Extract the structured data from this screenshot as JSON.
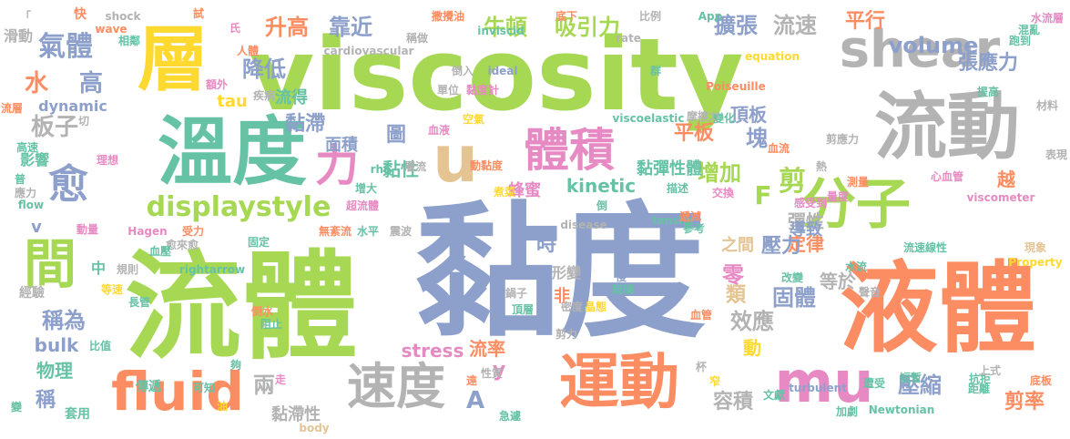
{
  "colors": {
    "blue": "#8DA0CB",
    "green": "#A6D854",
    "orange": "#FC8D62",
    "gray": "#B3B3B3",
    "pink": "#E78AC3",
    "yellow": "#FFD92F",
    "teal": "#66C2A5",
    "tan": "#E5C494"
  },
  "words": [
    {
      "text": "黏度",
      "color": "blue"
    },
    {
      "text": "流體",
      "color": "green"
    },
    {
      "text": "viscosity",
      "color": "green"
    },
    {
      "text": "液體",
      "color": "orange"
    },
    {
      "text": "溫度",
      "color": "teal"
    },
    {
      "text": "流動",
      "color": "gray"
    },
    {
      "text": "層",
      "color": "yellow"
    },
    {
      "text": "運動",
      "color": "orange"
    },
    {
      "text": "mu",
      "color": "pink"
    },
    {
      "text": "fluid",
      "color": "orange"
    },
    {
      "text": "shear",
      "color": "gray"
    },
    {
      "text": "分子",
      "color": "green"
    },
    {
      "text": "速度",
      "color": "gray"
    },
    {
      "text": "體積",
      "color": "pink"
    },
    {
      "text": "間",
      "color": "green"
    },
    {
      "text": "u",
      "color": "tan"
    },
    {
      "text": "力",
      "color": "pink"
    },
    {
      "text": "displaystyle",
      "color": "green"
    },
    {
      "text": "愈",
      "color": "blue"
    },
    {
      "text": "氣體",
      "color": "blue"
    },
    {
      "text": "升高",
      "color": "orange"
    },
    {
      "text": "靠近",
      "color": "blue"
    },
    {
      "text": "牛頓",
      "color": "green"
    },
    {
      "text": "吸引力",
      "color": "green"
    },
    {
      "text": "擴張",
      "color": "blue"
    },
    {
      "text": "流速",
      "color": "gray"
    },
    {
      "text": "平行",
      "color": "orange"
    },
    {
      "text": "volume",
      "color": "blue"
    },
    {
      "text": "張應力",
      "color": "blue"
    },
    {
      "text": "降低",
      "color": "blue"
    },
    {
      "text": "板子",
      "color": "gray"
    },
    {
      "text": "水",
      "color": "orange"
    },
    {
      "text": "高",
      "color": "blue"
    },
    {
      "text": "dynamic",
      "color": "blue"
    },
    {
      "text": "tau",
      "color": "yellow"
    },
    {
      "text": "流得",
      "color": "teal"
    },
    {
      "text": "黏滯",
      "color": "blue"
    },
    {
      "text": "面積",
      "color": "blue"
    },
    {
      "text": "圖",
      "color": "blue"
    },
    {
      "text": "頂板",
      "color": "blue"
    },
    {
      "text": "平板",
      "color": "orange"
    },
    {
      "text": "塊",
      "color": "blue"
    },
    {
      "text": "黏性",
      "color": "teal"
    },
    {
      "text": "kinetic",
      "color": "teal"
    },
    {
      "text": "增加",
      "color": "green"
    },
    {
      "text": "剪",
      "color": "green"
    },
    {
      "text": "F",
      "color": "green"
    },
    {
      "text": "彈性",
      "color": "gray"
    },
    {
      "text": "定律",
      "color": "orange"
    },
    {
      "text": "黏彈性體",
      "color": "teal"
    },
    {
      "text": "蜂蜜",
      "color": "pink"
    },
    {
      "text": "時",
      "color": "blue"
    },
    {
      "text": "之間",
      "color": "tan"
    },
    {
      "text": "導致",
      "color": "blue"
    },
    {
      "text": "壓力",
      "color": "blue"
    },
    {
      "text": "零",
      "color": "pink"
    },
    {
      "text": "類",
      "color": "tan"
    },
    {
      "text": "固體",
      "color": "blue"
    },
    {
      "text": "等於",
      "color": "gray"
    },
    {
      "text": "效應",
      "color": "gray"
    },
    {
      "text": "動",
      "color": "yellow"
    },
    {
      "text": "稱為",
      "color": "blue"
    },
    {
      "text": "bulk",
      "color": "blue"
    },
    {
      "text": "物理",
      "color": "teal"
    },
    {
      "text": "stress",
      "color": "pink"
    },
    {
      "text": "流率",
      "color": "orange"
    },
    {
      "text": "y",
      "color": "pink"
    },
    {
      "text": "A",
      "color": "blue"
    },
    {
      "text": "兩",
      "color": "gray"
    },
    {
      "text": "容積",
      "color": "gray"
    },
    {
      "text": "壓縮",
      "color": "blue"
    },
    {
      "text": "剪率",
      "color": "orange"
    },
    {
      "text": "稱",
      "color": "blue"
    },
    {
      "text": "黏滯性",
      "color": "gray"
    },
    {
      "text": "中",
      "color": "teal"
    },
    {
      "text": "v",
      "color": "blue"
    },
    {
      "text": "影響",
      "color": "teal"
    },
    {
      "text": "高速",
      "color": "teal"
    },
    {
      "text": "經驗",
      "color": "gray"
    },
    {
      "text": "套用",
      "color": "teal"
    },
    {
      "text": "傳遞",
      "color": "teal"
    },
    {
      "text": "可知",
      "color": "teal"
    },
    {
      "text": "變",
      "color": "teal"
    },
    {
      "text": "油",
      "color": "yellow"
    },
    {
      "text": "body",
      "color": "tan"
    },
    {
      "text": "遠",
      "color": "orange"
    },
    {
      "text": "急遽",
      "color": "teal"
    },
    {
      "text": "文獻",
      "color": "teal"
    },
    {
      "text": "加劇",
      "color": "teal"
    },
    {
      "text": "Newtonian",
      "color": "teal"
    },
    {
      "text": "遭受",
      "color": "teal"
    },
    {
      "text": "距離",
      "color": "teal"
    },
    {
      "text": "底板",
      "color": "orange"
    },
    {
      "text": "短暫",
      "color": "teal"
    },
    {
      "text": "turbulent",
      "color": "blue"
    },
    {
      "text": "窄",
      "color": "yellow"
    },
    {
      "text": "抗拒",
      "color": "teal"
    },
    {
      "text": "上式",
      "color": "gray"
    },
    {
      "text": "杯",
      "color": "gray"
    },
    {
      "text": "剪力",
      "color": "gray"
    },
    {
      "text": "血管",
      "color": "orange"
    },
    {
      "text": "聲音",
      "color": "gray"
    },
    {
      "text": "改變",
      "color": "teal"
    },
    {
      "text": "水流",
      "color": "teal"
    },
    {
      "text": "現象",
      "color": "tan"
    },
    {
      "text": "Property",
      "color": "yellow"
    },
    {
      "text": "長管",
      "color": "teal"
    },
    {
      "text": "等速",
      "color": "yellow"
    },
    {
      "text": "倒水",
      "color": "orange"
    },
    {
      "text": "阻止",
      "color": "teal"
    },
    {
      "text": "比值",
      "color": "teal"
    },
    {
      "text": "夠",
      "color": "teal"
    },
    {
      "text": "走",
      "color": "pink"
    },
    {
      "text": "頂層",
      "color": "teal"
    },
    {
      "text": "鍋子",
      "color": "gray"
    },
    {
      "text": "密度",
      "color": "gray"
    },
    {
      "text": "晶態",
      "color": "yellow"
    },
    {
      "text": "性質",
      "color": "gray"
    },
    {
      "text": "玻璃",
      "color": "teal"
    },
    {
      "text": "慢",
      "color": "blue"
    },
    {
      "text": "非",
      "color": "orange"
    },
    {
      "text": "形變",
      "color": "gray"
    },
    {
      "text": "流速線性",
      "color": "teal"
    },
    {
      "text": "參考",
      "color": "teal"
    },
    {
      "text": "tensile",
      "color": "teal"
    },
    {
      "text": "遞減",
      "color": "orange"
    },
    {
      "text": "disease",
      "color": "gray"
    },
    {
      "text": "倒",
      "color": "teal"
    },
    {
      "text": "超流體",
      "color": "pink"
    },
    {
      "text": "水平",
      "color": "teal"
    },
    {
      "text": "震波",
      "color": "gray"
    },
    {
      "text": "無紊流",
      "color": "orange"
    },
    {
      "text": "受力",
      "color": "orange"
    },
    {
      "text": "固定",
      "color": "teal"
    },
    {
      "text": "rightarrow",
      "color": "teal"
    },
    {
      "text": "規則",
      "color": "gray"
    },
    {
      "text": "愈來愈",
      "color": "gray"
    },
    {
      "text": "血壓",
      "color": "teal"
    },
    {
      "text": "Hagen",
      "color": "pink"
    },
    {
      "text": "動量",
      "color": "pink"
    },
    {
      "text": "flow",
      "color": "teal"
    },
    {
      "text": "應力",
      "color": "gray"
    },
    {
      "text": "普",
      "color": "teal"
    },
    {
      "text": "理想",
      "color": "pink"
    },
    {
      "text": "切",
      "color": "gray"
    },
    {
      "text": "流層",
      "color": "orange"
    },
    {
      "text": "疾病",
      "color": "gray"
    },
    {
      "text": "額外",
      "color": "pink"
    },
    {
      "text": "rho",
      "color": "teal"
    },
    {
      "text": "層流",
      "color": "gray"
    },
    {
      "text": "血液",
      "color": "pink"
    },
    {
      "text": "增大",
      "color": "teal"
    },
    {
      "text": "動黏度",
      "color": "orange"
    },
    {
      "text": "煮菜",
      "color": "yellow"
    },
    {
      "text": "描述",
      "color": "teal"
    },
    {
      "text": "交換",
      "color": "pink"
    },
    {
      "text": "感受到",
      "color": "pink"
    },
    {
      "text": "量度",
      "color": "pink"
    },
    {
      "text": "測量",
      "color": "orange"
    },
    {
      "text": "viscometer",
      "color": "pink"
    },
    {
      "text": "心血管",
      "color": "pink"
    },
    {
      "text": "熱",
      "color": "gray"
    },
    {
      "text": "越",
      "color": "orange"
    },
    {
      "text": "表現",
      "color": "gray"
    },
    {
      "text": "剪應力",
      "color": "gray"
    },
    {
      "text": "血流",
      "color": "orange"
    },
    {
      "text": "viscoelastic",
      "color": "teal"
    },
    {
      "text": "變化",
      "color": "teal"
    },
    {
      "text": "摩擦力",
      "color": "gray"
    },
    {
      "text": "提高",
      "color": "teal"
    },
    {
      "text": "材料",
      "color": "gray"
    },
    {
      "text": "Poiseuille",
      "color": "orange"
    },
    {
      "text": "空氣",
      "color": "yellow"
    },
    {
      "text": "單位",
      "color": "gray"
    },
    {
      "text": "黏度計",
      "color": "pink"
    },
    {
      "text": "倒入",
      "color": "gray"
    },
    {
      "text": "ideal",
      "color": "blue"
    },
    {
      "text": "群",
      "color": "teal"
    },
    {
      "text": "equation",
      "color": "yellow"
    },
    {
      "text": "跑到",
      "color": "teal"
    },
    {
      "text": "混亂",
      "color": "teal"
    },
    {
      "text": "水流層",
      "color": "pink"
    },
    {
      "text": "rate",
      "color": "gray"
    },
    {
      "text": "App",
      "color": "teal"
    },
    {
      "text": "比例",
      "color": "gray"
    },
    {
      "text": "底下",
      "color": "orange"
    },
    {
      "text": "撒攪油",
      "color": "orange"
    },
    {
      "text": "inviscid",
      "color": "teal"
    },
    {
      "text": "稱做",
      "color": "gray"
    },
    {
      "text": "cardiovascular",
      "color": "gray"
    },
    {
      "text": "試",
      "color": "orange"
    },
    {
      "text": "shock",
      "color": "gray"
    },
    {
      "text": "人體",
      "color": "orange"
    },
    {
      "text": "氏",
      "color": "pink"
    },
    {
      "text": "相鄰",
      "color": "teal"
    },
    {
      "text": "wave",
      "color": "orange"
    },
    {
      "text": "快",
      "color": "orange"
    },
    {
      "text": "滑動",
      "color": "gray"
    },
    {
      "text": "「",
      "color": "gray"
    }
  ]
}
